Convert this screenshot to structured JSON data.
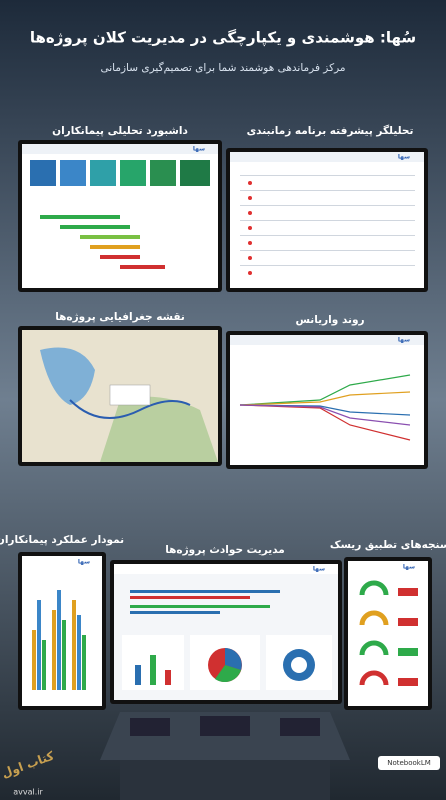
{
  "header": {
    "title": "سُها: هوشمندی و یکپارچگی در مدیریت کلان پروژه‌ها",
    "subtitle": "مرکز فرماندهی هوشمند شما برای تصمیم‌گیری سازمانی"
  },
  "panels": [
    {
      "label": "داشبورد تحلیلی پیمانکاران"
    },
    {
      "label": "تحلیلگر پیشرفته برنامه زمانبندی"
    },
    {
      "label": "نقشه جغرافیایی پروژه‌ها"
    },
    {
      "label": "روند واریانس"
    },
    {
      "label": "نمودار عملکرد پیمانکاران"
    },
    {
      "label": "مدیریت حوادث پروژه‌ها"
    },
    {
      "label": "سنجه‌های تطبیق ریسک"
    }
  ],
  "screen_logo": "سها",
  "footer": {
    "badge": "NotebookLM",
    "watermark": "کتاب اول",
    "site": "avval.ir"
  }
}
